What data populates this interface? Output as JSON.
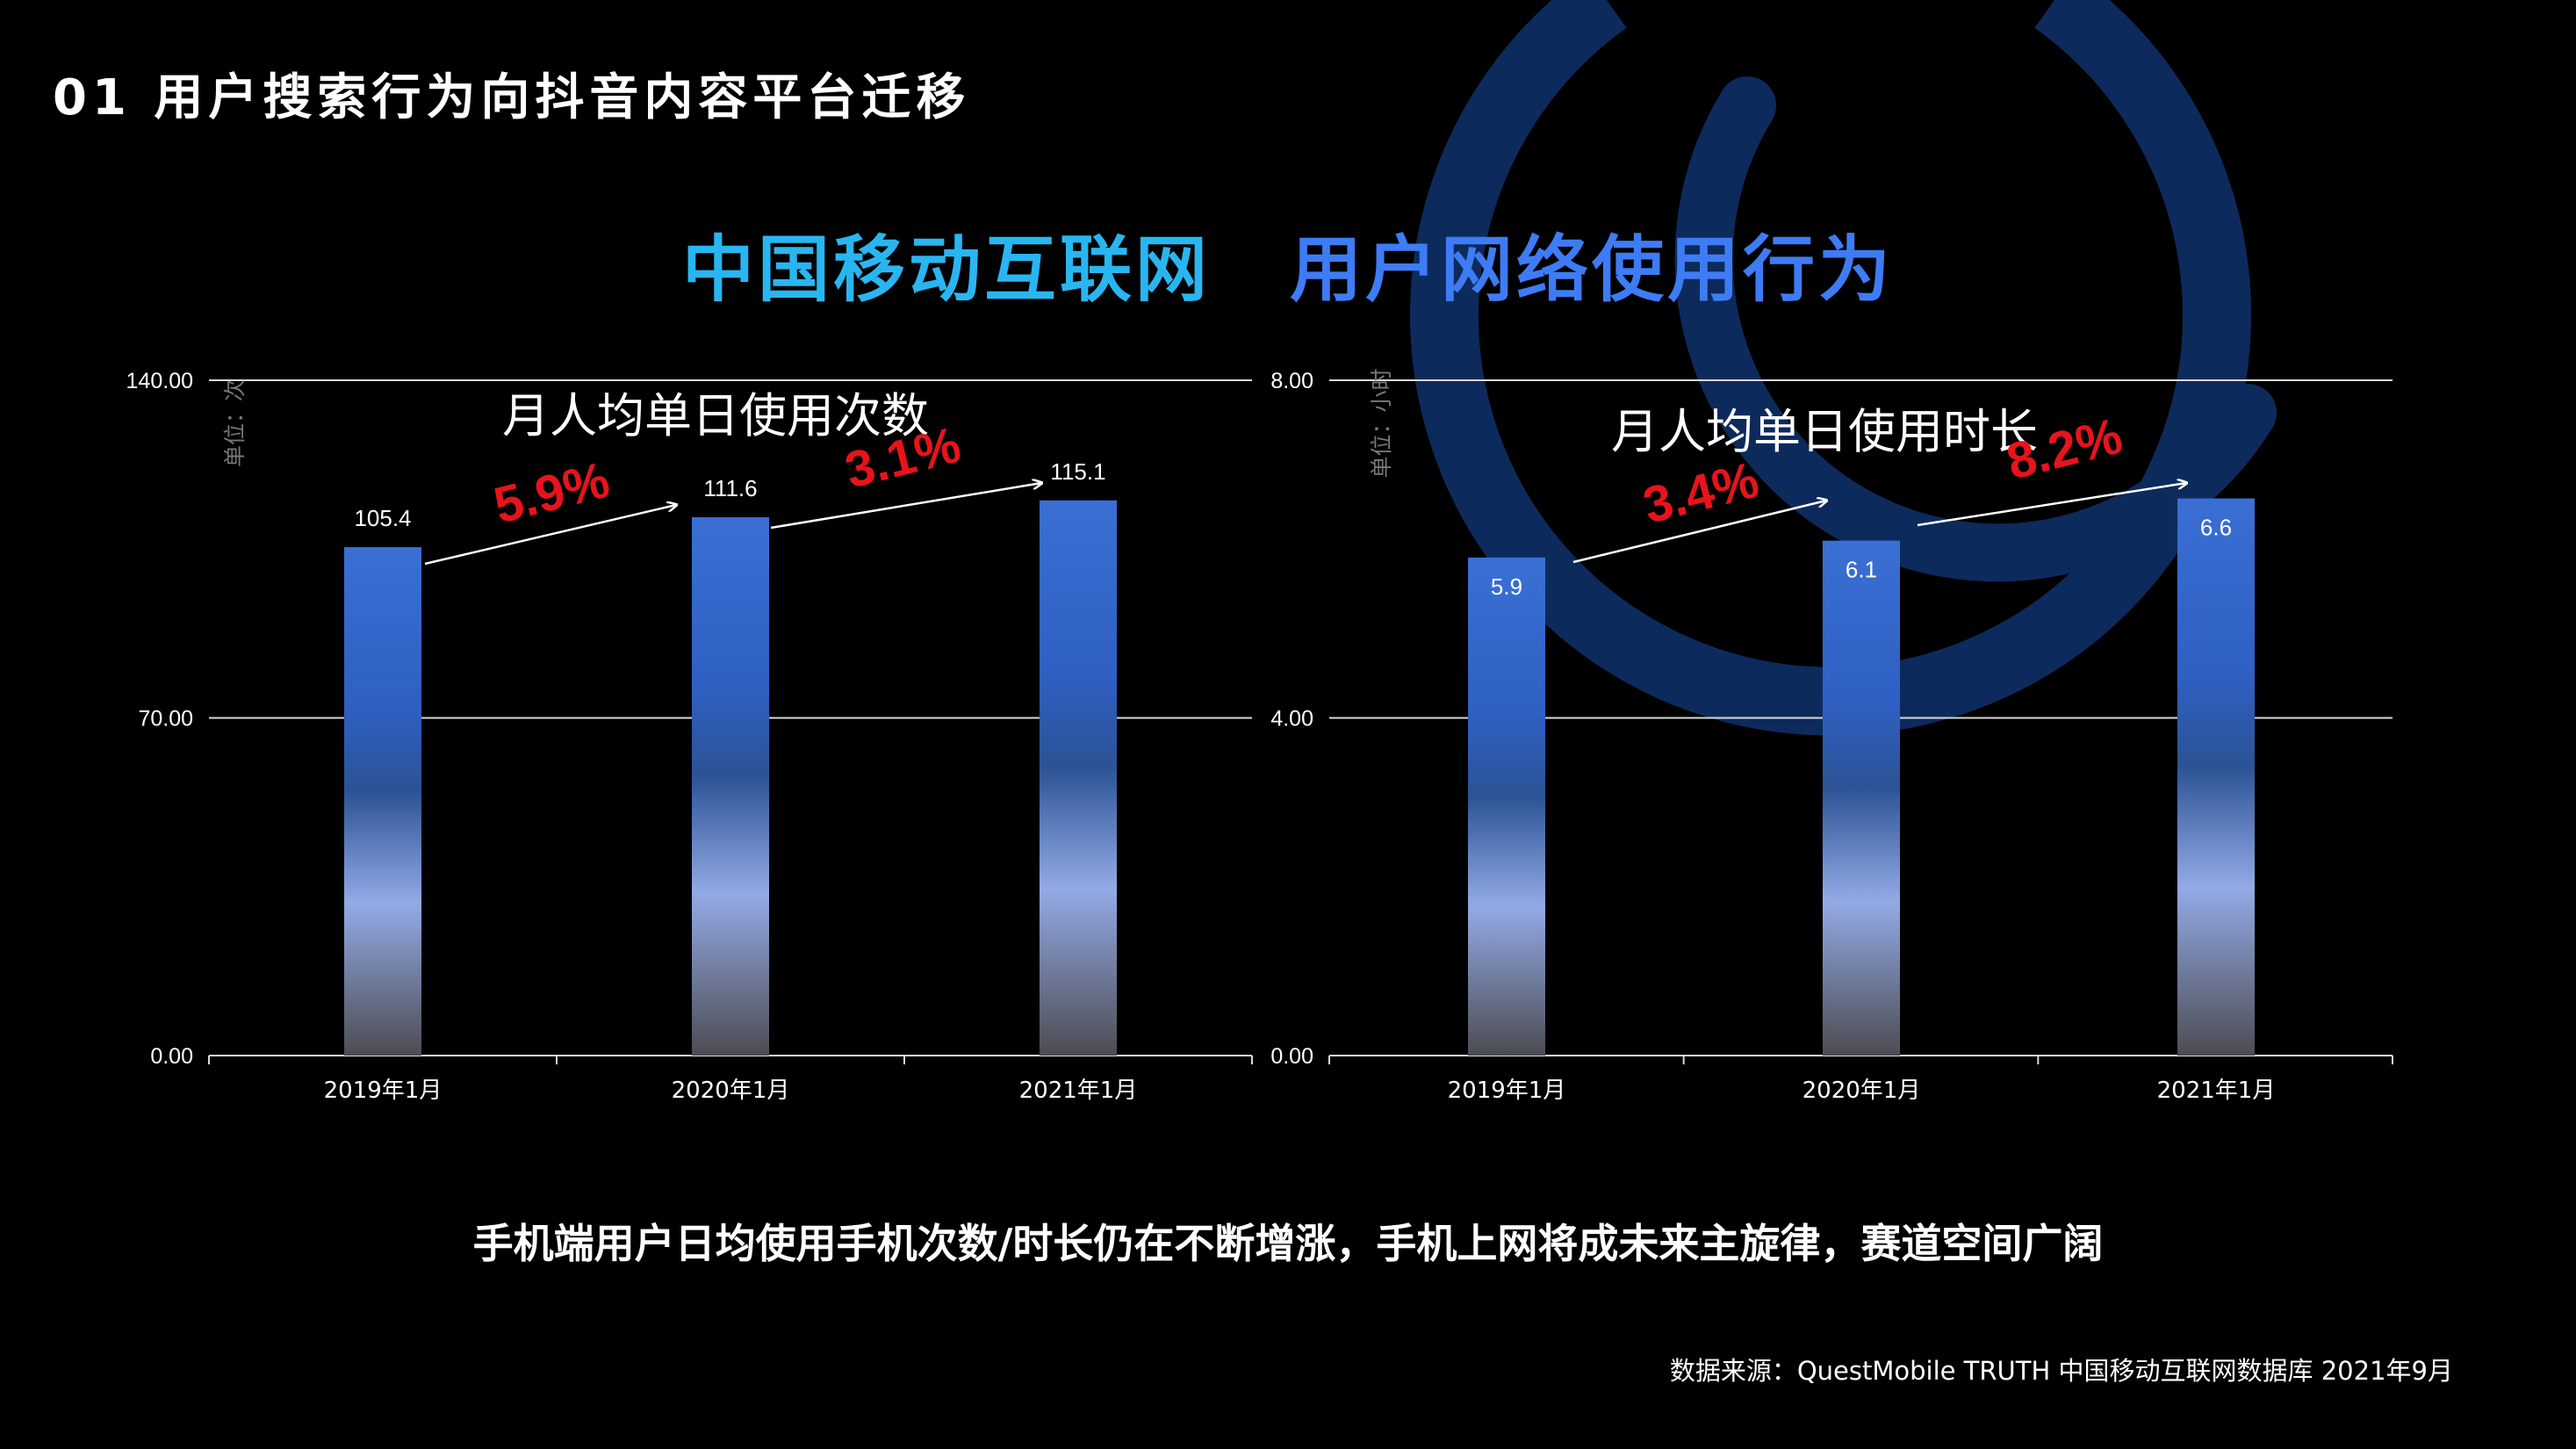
{
  "header": {
    "section_title": "01 用户搜索行为向抖音内容平台迁移"
  },
  "main_title": {
    "part1": "中国移动互联网",
    "part2": "用户网络使用行为"
  },
  "colors": {
    "background": "#000000",
    "title_cyan": "#29b6f0",
    "title_blue": "#3d7cf5",
    "bar_top": "#3a6fd4",
    "growth_red": "#e8131b",
    "deco_ring": "#0d2a5c"
  },
  "chart_data": [
    {
      "type": "bar",
      "title": "月人均单日使用次数",
      "ylabel": "单位：次",
      "categories": [
        "2019年1月",
        "2020年1月",
        "2021年1月"
      ],
      "values": [
        105.4,
        111.6,
        115.1
      ],
      "value_labels": [
        "105.4",
        "111.6",
        "115.1"
      ],
      "yticks": [
        "0.00",
        "70.00",
        "140.00"
      ],
      "ylim": [
        0,
        140
      ],
      "grid": true,
      "growth_labels": [
        "5.9%",
        "3.1%"
      ]
    },
    {
      "type": "bar",
      "title": "月人均单日使用时长",
      "ylabel": "单位：小时",
      "categories": [
        "2019年1月",
        "2020年1月",
        "2021年1月"
      ],
      "values": [
        5.9,
        6.1,
        6.6
      ],
      "value_labels": [
        "5.9",
        "6.1",
        "6.6"
      ],
      "yticks": [
        "0.00",
        "4.00",
        "8.00"
      ],
      "ylim": [
        0,
        8
      ],
      "grid": true,
      "growth_labels": [
        "3.4%",
        "8.2%"
      ]
    }
  ],
  "conclusion": "手机端用户日均使用手机次数/时长仍在不断增涨，手机上网将成未来主旋律，赛道空间广阔",
  "source": "数据来源：QuestMobile TRUTH 中国移动互联网数据库 2021年9月"
}
